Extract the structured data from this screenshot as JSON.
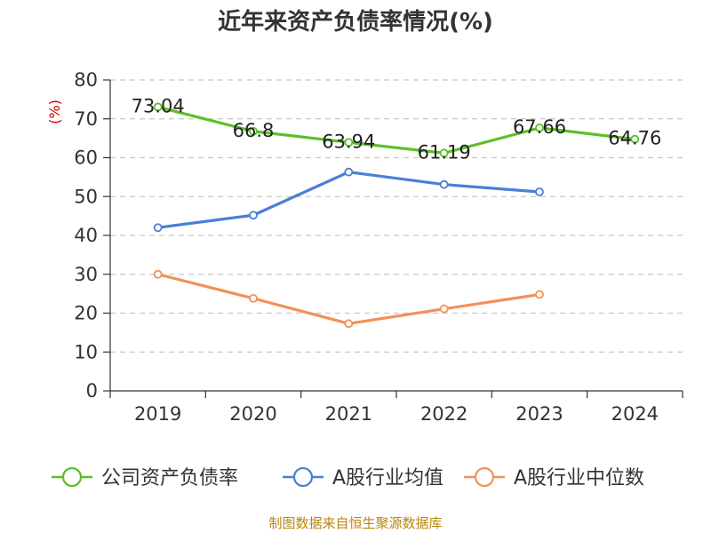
{
  "source_note": "制图数据来自恒生聚源数据库",
  "chart_data": {
    "type": "line",
    "title": "近年来资产负债率情况(%)",
    "xlabel": "",
    "ylabel": "(%)",
    "categories": [
      "2019",
      "2020",
      "2021",
      "2022",
      "2023",
      "2024"
    ],
    "ylim": [
      0,
      80
    ],
    "yticks": [
      0,
      10,
      20,
      30,
      40,
      50,
      60,
      70,
      80
    ],
    "grid": true,
    "legend_position": "bottom",
    "series": [
      {
        "name": "公司资产负债率",
        "color": "#5cbf27",
        "values": [
          73.04,
          66.8,
          63.94,
          61.19,
          67.66,
          64.76
        ],
        "labels": [
          "73.04",
          "66.8",
          "63.94",
          "61.19",
          "67.66",
          "64.76"
        ]
      },
      {
        "name": "A股行业均值",
        "color": "#4a7fd6",
        "values": [
          42,
          45.2,
          56.3,
          53.1,
          51.2,
          null
        ]
      },
      {
        "name": "A股行业中位数",
        "color": "#f39058",
        "values": [
          30,
          23.8,
          17.3,
          21.1,
          24.8,
          null
        ]
      }
    ]
  }
}
